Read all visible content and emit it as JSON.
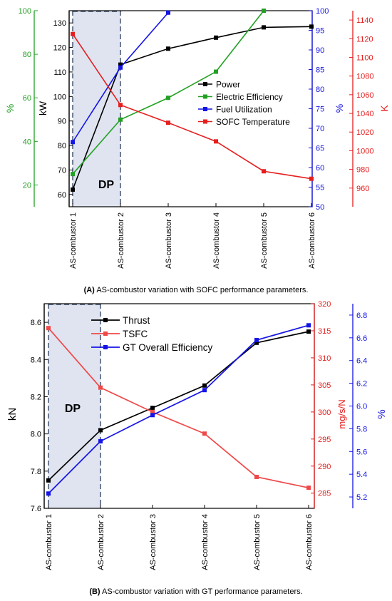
{
  "chart_data": [
    {
      "type": "line",
      "panel": "A",
      "categories": [
        "AS-combustor 1",
        "AS-combustor 2",
        "AS-combustor 3",
        "AS-combustor 4",
        "AS-combustor 5",
        "AS-combustor 6"
      ],
      "highlight": {
        "label": "DP",
        "from": "AS-combustor 1",
        "to": "AS-combustor 2"
      },
      "axes": {
        "kw": {
          "label": "kW",
          "range": [
            55,
            135
          ],
          "ticks": [
            60,
            70,
            80,
            90,
            100,
            110,
            120,
            130
          ],
          "color": "#000000"
        },
        "eff": {
          "label": "%",
          "range": [
            10,
            100
          ],
          "ticks": [
            20,
            40,
            60,
            80,
            100
          ],
          "color": "#22a022"
        },
        "util": {
          "label": "%",
          "range": [
            50,
            100
          ],
          "ticks": [
            50,
            55,
            60,
            65,
            70,
            75,
            80,
            85,
            90,
            95,
            100
          ],
          "color": "#1414e6"
        },
        "temp": {
          "label": "K",
          "range": [
            940,
            1150
          ],
          "ticks": [
            960,
            980,
            1000,
            1020,
            1040,
            1060,
            1080,
            1100,
            1120,
            1140
          ],
          "color": "#e61e1e"
        }
      },
      "series": [
        {
          "name": "Power",
          "axis": "kw",
          "color": "#000000",
          "values": [
            62,
            113,
            119.5,
            124,
            128.2,
            128.5
          ]
        },
        {
          "name": "Electric Efficiency",
          "axis": "eff",
          "color": "#22a022",
          "values": [
            25,
            50,
            60,
            72,
            100,
            null
          ]
        },
        {
          "name": "Fuel Utilization",
          "axis": "util",
          "color": "#1414e6",
          "values": [
            66.5,
            85.5,
            99.5,
            null,
            null,
            null
          ]
        },
        {
          "name": "SOFC Temperature",
          "axis": "temp",
          "color": "#e61e1e",
          "values": [
            1125,
            1049,
            1030,
            1010,
            978,
            970
          ]
        }
      ],
      "caption_label": "(A)",
      "caption_text": "AS-combustor variation with SOFC performance parameters."
    },
    {
      "type": "line",
      "panel": "B",
      "categories": [
        "AS-combustor 1",
        "AS-combustor 2",
        "AS-combustor 3",
        "AS-combustor 4",
        "AS-combustor 5",
        "AS-combustor 6"
      ],
      "highlight": {
        "label": "DP",
        "from": "AS-combustor 1",
        "to": "AS-combustor 2"
      },
      "axes": {
        "kn": {
          "label": "kN",
          "range": [
            7.6,
            8.7
          ],
          "ticks": [
            "7.6",
            "7.8",
            "8.0",
            "8.2",
            "8.4",
            "8.6"
          ],
          "color": "#000000"
        },
        "tsfc": {
          "label": "mg/s/N",
          "range": [
            282.2,
            320
          ],
          "ticks": [
            285,
            290,
            295,
            300,
            305,
            310,
            315,
            320
          ],
          "color": "#e61e1e"
        },
        "gteff": {
          "label": "%",
          "range": [
            5.1,
            6.9
          ],
          "ticks": [
            "5.2",
            "5.4",
            "5.6",
            "5.8",
            "6.0",
            "6.2",
            "6.4",
            "6.6",
            "6.8"
          ],
          "color": "#1414e6"
        }
      },
      "series": [
        {
          "name": "Thrust",
          "axis": "kn",
          "color": "#000000",
          "values": [
            7.75,
            8.02,
            8.14,
            8.26,
            8.49,
            8.55
          ]
        },
        {
          "name": "TSFC",
          "axis": "tsfc",
          "color": "#f04848",
          "values": [
            315.5,
            304.5,
            300,
            296,
            288,
            286
          ]
        },
        {
          "name": "GT Overall Efficiency",
          "axis": "gteff",
          "color": "#1414e6",
          "values": [
            5.23,
            5.69,
            5.92,
            6.14,
            6.58,
            6.71
          ]
        }
      ],
      "caption_label": "(B)",
      "caption_text": "AS-combustor variation with GT performance parameters."
    }
  ]
}
